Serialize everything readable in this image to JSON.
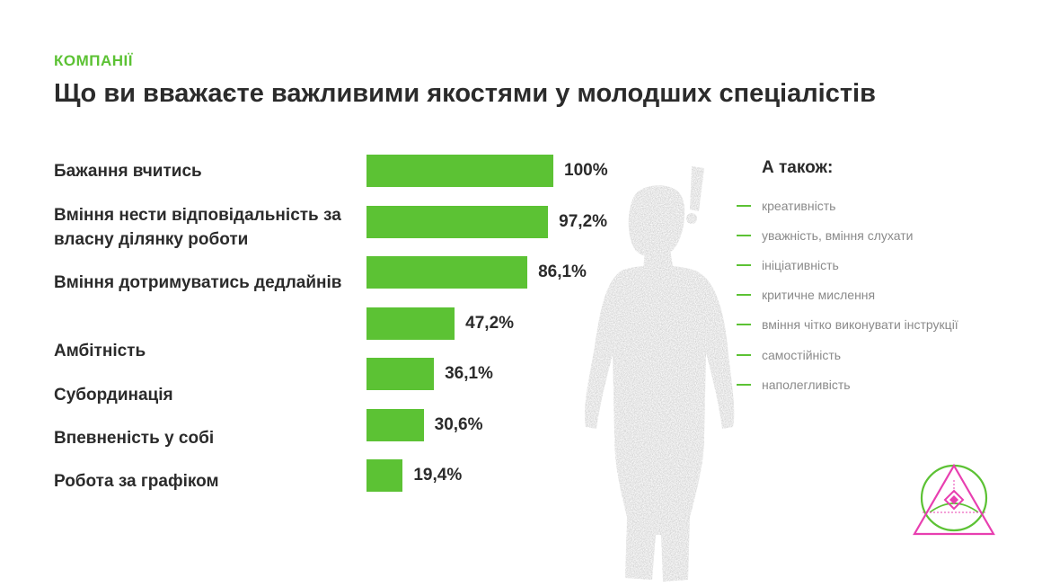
{
  "header": {
    "section": "КОМПАНІЇ",
    "title": "Що ви вважаєте важливими якостями у молодших спеціалістів"
  },
  "chart_data": {
    "type": "bar",
    "orientation": "horizontal",
    "title": "Що ви вважаєте важливими якостями у молодших спеціалістів",
    "categories": [
      "Бажання вчитись",
      "Вміння нести відповідальність за власну ділянку роботи",
      "Вміння дотримуватись дедлайнів",
      "Амбітність",
      "Субординація",
      "Впевненість у собі",
      "Робота за графіком"
    ],
    "values": [
      100,
      97.2,
      86.1,
      47.2,
      36.1,
      30.6,
      19.4
    ],
    "value_labels": [
      "100%",
      "97,2%",
      "86,1%",
      "47,2%",
      "36,1%",
      "30,6%",
      "19,4%"
    ],
    "unit": "%",
    "xlim": [
      0,
      100
    ],
    "grid": false,
    "bar_color": "#5cc234"
  },
  "also": {
    "title": "А також:",
    "items": [
      "креативність",
      "уважність, вміння слухати",
      "ініціативність",
      "критичне мислення",
      "вміння чітко виконувати інструкції",
      "самостійність",
      "наполегливість"
    ]
  },
  "colors": {
    "accent": "#5cc234",
    "text": "#2b2b2b",
    "muted": "#8a8a8a",
    "logo_pink": "#e83fb0"
  },
  "icons": {
    "figure": "person-silhouette-icon",
    "logo": "triangle-circle-logo-icon"
  }
}
